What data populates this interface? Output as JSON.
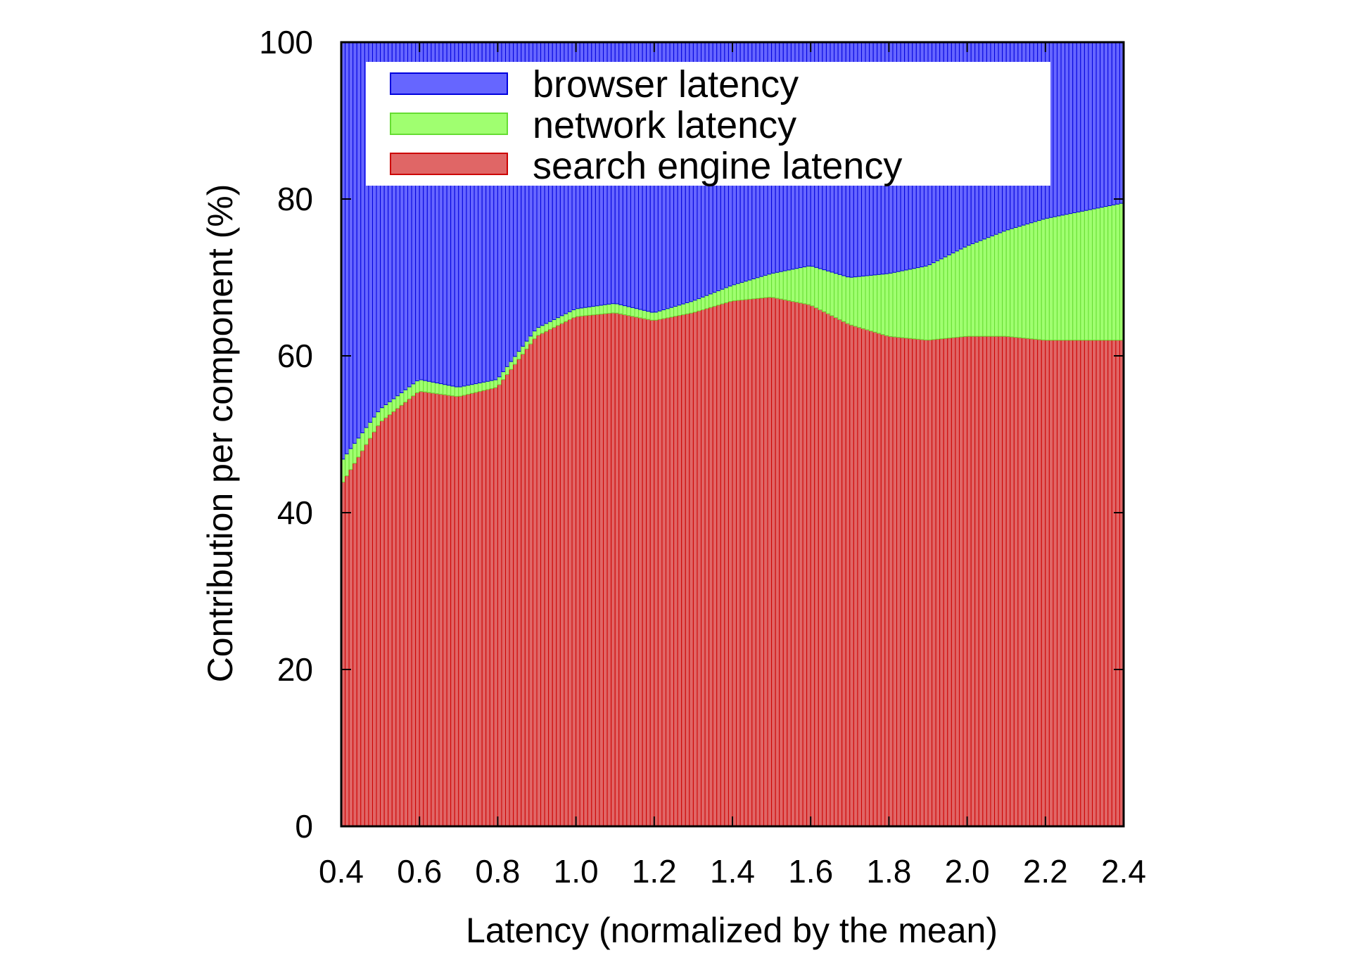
{
  "chart_data": {
    "type": "bar",
    "stacked": true,
    "xlabel": "Latency (normalized by the mean)",
    "ylabel": "Contribution per component (%)",
    "xlim": [
      0.4,
      2.4
    ],
    "ylim": [
      0,
      100
    ],
    "x_ticks": [
      "0.4",
      "0.6",
      "0.8",
      "1.0",
      "1.2",
      "1.4",
      "1.6",
      "1.8",
      "2.0",
      "2.2",
      "2.4"
    ],
    "y_ticks": [
      "0",
      "20",
      "40",
      "60",
      "80",
      "100"
    ],
    "legend_position": "top",
    "grid": false,
    "bin_width": 0.01,
    "x": [
      0.4,
      0.5,
      0.6,
      0.7,
      0.8,
      0.9,
      1.0,
      1.1,
      1.2,
      1.3,
      1.4,
      1.5,
      1.6,
      1.7,
      1.8,
      1.9,
      2.0,
      2.1,
      2.2,
      2.3,
      2.4
    ],
    "series": [
      {
        "name": "search engine latency",
        "color": "#e06666",
        "edge": "#cc0000",
        "values": [
          43.5,
          51.5,
          55.5,
          54.8,
          56.0,
          62.5,
          65.0,
          65.5,
          64.5,
          65.5,
          67.0,
          67.5,
          66.5,
          64.0,
          62.5,
          62.0,
          62.5,
          62.5,
          62.0,
          62.0,
          62.0
        ]
      },
      {
        "name": "network latency",
        "color": "#a0ff70",
        "edge": "#66dd33",
        "values": [
          3.0,
          1.7,
          1.5,
          1.2,
          1.0,
          1.0,
          1.0,
          1.2,
          1.0,
          1.5,
          2.0,
          3.0,
          5.0,
          6.0,
          8.0,
          9.5,
          11.5,
          13.5,
          15.5,
          16.5,
          17.5
        ]
      },
      {
        "name": "browser latency",
        "color": "#6666ff",
        "edge": "#0000dd",
        "values": [
          53.5,
          46.8,
          43.0,
          44.0,
          43.0,
          36.5,
          34.0,
          33.3,
          34.5,
          33.0,
          31.0,
          29.5,
          28.5,
          30.0,
          29.5,
          28.5,
          26.0,
          24.0,
          22.5,
          21.5,
          20.5
        ]
      }
    ]
  }
}
